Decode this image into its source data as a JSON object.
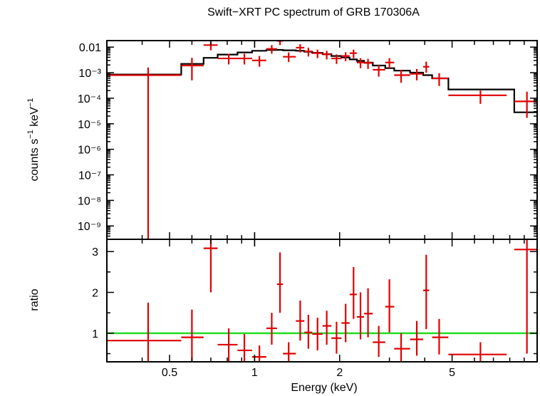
{
  "chart_data": [
    {
      "type": "line",
      "panel": "spectrum",
      "title": "Swift−XRT PC spectrum of GRB 170306A",
      "ylabel": "counts s⁻¹ keV⁻¹",
      "xlabel": "",
      "yscale": "log",
      "xscale": "log",
      "xlim": [
        0.3,
        10
      ],
      "ylim": [
        3e-10,
        0.018
      ],
      "ytick_labels": [
        {
          "value": 0.01,
          "text": "0.01"
        },
        {
          "value": 0.001,
          "text": "10⁻³"
        },
        {
          "value": 0.0001,
          "text": "10⁻⁴"
        },
        {
          "value": 1e-05,
          "text": "10⁻⁵"
        },
        {
          "value": 1e-06,
          "text": "10⁻⁶"
        },
        {
          "value": 1e-07,
          "text": "10⁻⁷"
        },
        {
          "value": 1e-08,
          "text": "10⁻⁸"
        },
        {
          "value": 1e-09,
          "text": "10⁻⁹"
        }
      ],
      "series": [
        {
          "kind": "data",
          "color": "#e00000",
          "points": [
            {
              "x": 0.42,
              "xlo": 0.3,
              "xhi": 0.55,
              "y": 0.0008,
              "ylo": 3e-10,
              "yhi": 0.0016
            },
            {
              "x": 0.6,
              "xlo": 0.55,
              "xhi": 0.66,
              "y": 0.0019,
              "ylo": 0.0005,
              "yhi": 0.0038
            },
            {
              "x": 0.7,
              "xlo": 0.66,
              "xhi": 0.74,
              "y": 0.012,
              "ylo": 0.0075,
              "yhi": 0.016
            },
            {
              "x": 0.81,
              "xlo": 0.74,
              "xhi": 0.87,
              "y": 0.0036,
              "ylo": 0.0021,
              "yhi": 0.0055
            },
            {
              "x": 0.92,
              "xlo": 0.87,
              "xhi": 0.98,
              "y": 0.0036,
              "ylo": 0.0021,
              "yhi": 0.0055
            },
            {
              "x": 1.04,
              "xlo": 0.98,
              "xhi": 1.1,
              "y": 0.003,
              "ylo": 0.0017,
              "yhi": 0.0045
            },
            {
              "x": 1.15,
              "xlo": 1.1,
              "xhi": 1.2,
              "y": 0.0085,
              "ylo": 0.0055,
              "yhi": 0.012
            },
            {
              "x": 1.23,
              "xlo": 1.2,
              "xhi": 1.26,
              "y": 0.0175,
              "ylo": 0.012,
              "yhi": 0.022
            },
            {
              "x": 1.32,
              "xlo": 1.26,
              "xhi": 1.4,
              "y": 0.0042,
              "ylo": 0.0026,
              "yhi": 0.0062
            },
            {
              "x": 1.45,
              "xlo": 1.4,
              "xhi": 1.5,
              "y": 0.0095,
              "ylo": 0.0062,
              "yhi": 0.013
            },
            {
              "x": 1.55,
              "xlo": 1.5,
              "xhi": 1.6,
              "y": 0.0068,
              "ylo": 0.0043,
              "yhi": 0.0095
            },
            {
              "x": 1.67,
              "xlo": 1.6,
              "xhi": 1.74,
              "y": 0.0058,
              "ylo": 0.0037,
              "yhi": 0.008
            },
            {
              "x": 1.8,
              "xlo": 1.74,
              "xhi": 1.87,
              "y": 0.0052,
              "ylo": 0.0033,
              "yhi": 0.0072
            },
            {
              "x": 1.95,
              "xlo": 1.87,
              "xhi": 2.03,
              "y": 0.0036,
              "ylo": 0.0022,
              "yhi": 0.0052
            },
            {
              "x": 2.1,
              "xlo": 2.03,
              "xhi": 2.17,
              "y": 0.0045,
              "ylo": 0.0028,
              "yhi": 0.0063
            },
            {
              "x": 2.24,
              "xlo": 2.17,
              "xhi": 2.3,
              "y": 0.0058,
              "ylo": 0.0037,
              "yhi": 0.008
            },
            {
              "x": 2.37,
              "xlo": 2.3,
              "xhi": 2.44,
              "y": 0.0025,
              "ylo": 0.0015,
              "yhi": 0.0037
            },
            {
              "x": 2.52,
              "xlo": 2.44,
              "xhi": 2.62,
              "y": 0.0024,
              "ylo": 0.0014,
              "yhi": 0.0035
            },
            {
              "x": 2.75,
              "xlo": 2.62,
              "xhi": 2.9,
              "y": 0.0013,
              "ylo": 0.0007,
              "yhi": 0.002
            },
            {
              "x": 3.0,
              "xlo": 2.9,
              "xhi": 3.12,
              "y": 0.0025,
              "ylo": 0.0015,
              "yhi": 0.0037
            },
            {
              "x": 3.3,
              "xlo": 3.12,
              "xhi": 3.55,
              "y": 0.0008,
              "ylo": 0.0004,
              "yhi": 0.0013
            },
            {
              "x": 3.75,
              "xlo": 3.55,
              "xhi": 3.95,
              "y": 0.0009,
              "ylo": 0.0005,
              "yhi": 0.0014
            },
            {
              "x": 4.05,
              "xlo": 3.95,
              "xhi": 4.15,
              "y": 0.0017,
              "ylo": 0.001,
              "yhi": 0.0027
            },
            {
              "x": 4.5,
              "xlo": 4.25,
              "xhi": 4.85,
              "y": 0.0006,
              "ylo": 0.0003,
              "yhi": 0.00095
            },
            {
              "x": 6.3,
              "xlo": 4.85,
              "xhi": 7.8,
              "y": 0.00013,
              "ylo": 6e-05,
              "yhi": 0.0002
            },
            {
              "x": 9.2,
              "xlo": 8.3,
              "xhi": 10.0,
              "y": 7.5e-05,
              "ylo": 1.7e-05,
              "yhi": 0.00018
            }
          ]
        },
        {
          "kind": "model",
          "color": "#000000",
          "steps": [
            {
              "xlo": 0.3,
              "xhi": 0.55,
              "y": 0.00085
            },
            {
              "xlo": 0.55,
              "xhi": 0.66,
              "y": 0.0022
            },
            {
              "xlo": 0.66,
              "xhi": 0.74,
              "y": 0.0038
            },
            {
              "xlo": 0.74,
              "xhi": 0.87,
              "y": 0.0051
            },
            {
              "xlo": 0.87,
              "xhi": 0.98,
              "y": 0.0062
            },
            {
              "xlo": 0.98,
              "xhi": 1.1,
              "y": 0.0072
            },
            {
              "xlo": 1.1,
              "xhi": 1.2,
              "y": 0.0077
            },
            {
              "xlo": 1.2,
              "xhi": 1.26,
              "y": 0.0078
            },
            {
              "xlo": 1.26,
              "xhi": 1.4,
              "y": 0.0075
            },
            {
              "xlo": 1.4,
              "xhi": 1.5,
              "y": 0.0072
            },
            {
              "xlo": 1.5,
              "xhi": 1.6,
              "y": 0.0066
            },
            {
              "xlo": 1.6,
              "xhi": 1.74,
              "y": 0.006
            },
            {
              "xlo": 1.74,
              "xhi": 1.87,
              "y": 0.0053
            },
            {
              "xlo": 1.87,
              "xhi": 2.03,
              "y": 0.0045
            },
            {
              "xlo": 2.03,
              "xhi": 2.17,
              "y": 0.0039
            },
            {
              "xlo": 2.17,
              "xhi": 2.3,
              "y": 0.0033
            },
            {
              "xlo": 2.3,
              "xhi": 2.44,
              "y": 0.0029
            },
            {
              "xlo": 2.44,
              "xhi": 2.62,
              "y": 0.0025
            },
            {
              "xlo": 2.62,
              "xhi": 2.9,
              "y": 0.0019
            },
            {
              "xlo": 2.9,
              "xhi": 3.12,
              "y": 0.0015
            },
            {
              "xlo": 3.12,
              "xhi": 3.55,
              "y": 0.0012
            },
            {
              "xlo": 3.55,
              "xhi": 3.95,
              "y": 0.001
            },
            {
              "xlo": 3.95,
              "xhi": 4.25,
              "y": 0.0008
            },
            {
              "xlo": 4.25,
              "xhi": 4.85,
              "y": 0.0006
            },
            {
              "xlo": 4.85,
              "xhi": 8.3,
              "y": 0.00022
            },
            {
              "xlo": 8.3,
              "xhi": 10.0,
              "y": 2.8e-05
            }
          ]
        }
      ]
    },
    {
      "type": "scatter",
      "panel": "ratio",
      "ylabel": "ratio",
      "xlabel": "Energy (keV)",
      "xscale": "log",
      "xlim": [
        0.3,
        10
      ],
      "ylim": [
        0.3,
        3.3
      ],
      "xtick_labels": [
        {
          "value": 0.5,
          "text": "0.5"
        },
        {
          "value": 1,
          "text": "1"
        },
        {
          "value": 2,
          "text": "2"
        },
        {
          "value": 5,
          "text": "5"
        }
      ],
      "ytick_labels": [
        {
          "value": 1,
          "text": "1"
        },
        {
          "value": 2,
          "text": "2"
        },
        {
          "value": 3,
          "text": "3"
        }
      ],
      "reference_line": {
        "y": 1,
        "color": "#22dd22"
      },
      "series": [
        {
          "kind": "data",
          "color": "#e00000",
          "points": [
            {
              "x": 0.42,
              "xlo": 0.3,
              "xhi": 0.55,
              "y": 0.82,
              "ylo": 0.3,
              "yhi": 1.75
            },
            {
              "x": 0.6,
              "xlo": 0.55,
              "xhi": 0.66,
              "y": 0.9,
              "ylo": 0.3,
              "yhi": 1.58
            },
            {
              "x": 0.7,
              "xlo": 0.66,
              "xhi": 0.74,
              "y": 3.08,
              "ylo": 2.0,
              "yhi": 3.3
            },
            {
              "x": 0.81,
              "xlo": 0.74,
              "xhi": 0.87,
              "y": 0.72,
              "ylo": 0.3,
              "yhi": 1.12
            },
            {
              "x": 0.92,
              "xlo": 0.87,
              "xhi": 0.98,
              "y": 0.58,
              "ylo": 0.3,
              "yhi": 0.98
            },
            {
              "x": 1.04,
              "xlo": 0.98,
              "xhi": 1.1,
              "y": 0.42,
              "ylo": 0.3,
              "yhi": 0.7
            },
            {
              "x": 1.15,
              "xlo": 1.1,
              "xhi": 1.2,
              "y": 1.12,
              "ylo": 0.72,
              "yhi": 1.5
            },
            {
              "x": 1.23,
              "xlo": 1.2,
              "xhi": 1.26,
              "y": 2.2,
              "ylo": 1.5,
              "yhi": 2.98
            },
            {
              "x": 1.32,
              "xlo": 1.26,
              "xhi": 1.4,
              "y": 0.5,
              "ylo": 0.3,
              "yhi": 0.78
            },
            {
              "x": 1.45,
              "xlo": 1.4,
              "xhi": 1.5,
              "y": 1.3,
              "ylo": 0.82,
              "yhi": 1.8
            },
            {
              "x": 1.55,
              "xlo": 1.5,
              "xhi": 1.6,
              "y": 1.02,
              "ylo": 0.62,
              "yhi": 1.45
            },
            {
              "x": 1.67,
              "xlo": 1.6,
              "xhi": 1.74,
              "y": 0.98,
              "ylo": 0.58,
              "yhi": 1.38
            },
            {
              "x": 1.8,
              "xlo": 1.74,
              "xhi": 1.87,
              "y": 1.18,
              "ylo": 0.72,
              "yhi": 1.55
            },
            {
              "x": 1.95,
              "xlo": 1.87,
              "xhi": 2.03,
              "y": 0.88,
              "ylo": 0.5,
              "yhi": 1.28
            },
            {
              "x": 2.1,
              "xlo": 2.03,
              "xhi": 2.17,
              "y": 1.25,
              "ylo": 0.78,
              "yhi": 1.72
            },
            {
              "x": 2.24,
              "xlo": 2.17,
              "xhi": 2.3,
              "y": 1.95,
              "ylo": 1.35,
              "yhi": 2.62
            },
            {
              "x": 2.37,
              "xlo": 2.3,
              "xhi": 2.44,
              "y": 1.4,
              "ylo": 0.85,
              "yhi": 2.0
            },
            {
              "x": 2.52,
              "xlo": 2.44,
              "xhi": 2.62,
              "y": 1.48,
              "ylo": 0.9,
              "yhi": 2.1
            },
            {
              "x": 2.75,
              "xlo": 2.62,
              "xhi": 2.9,
              "y": 0.78,
              "ylo": 0.42,
              "yhi": 1.18
            },
            {
              "x": 3.0,
              "xlo": 2.9,
              "xhi": 3.12,
              "y": 1.65,
              "ylo": 1.02,
              "yhi": 2.32
            },
            {
              "x": 3.3,
              "xlo": 3.12,
              "xhi": 3.55,
              "y": 0.62,
              "ylo": 0.3,
              "yhi": 1.0
            },
            {
              "x": 3.75,
              "xlo": 3.55,
              "xhi": 3.95,
              "y": 0.85,
              "ylo": 0.45,
              "yhi": 1.3
            },
            {
              "x": 4.05,
              "xlo": 3.95,
              "xhi": 4.15,
              "y": 2.05,
              "ylo": 1.1,
              "yhi": 2.92
            },
            {
              "x": 4.5,
              "xlo": 4.25,
              "xhi": 4.85,
              "y": 0.9,
              "ylo": 0.48,
              "yhi": 1.35
            },
            {
              "x": 6.3,
              "xlo": 4.85,
              "xhi": 7.8,
              "y": 0.48,
              "ylo": 0.3,
              "yhi": 0.78
            },
            {
              "x": 9.2,
              "xlo": 8.3,
              "xhi": 10.0,
              "y": 3.05,
              "ylo": 0.5,
              "yhi": 3.3
            }
          ]
        }
      ]
    }
  ]
}
